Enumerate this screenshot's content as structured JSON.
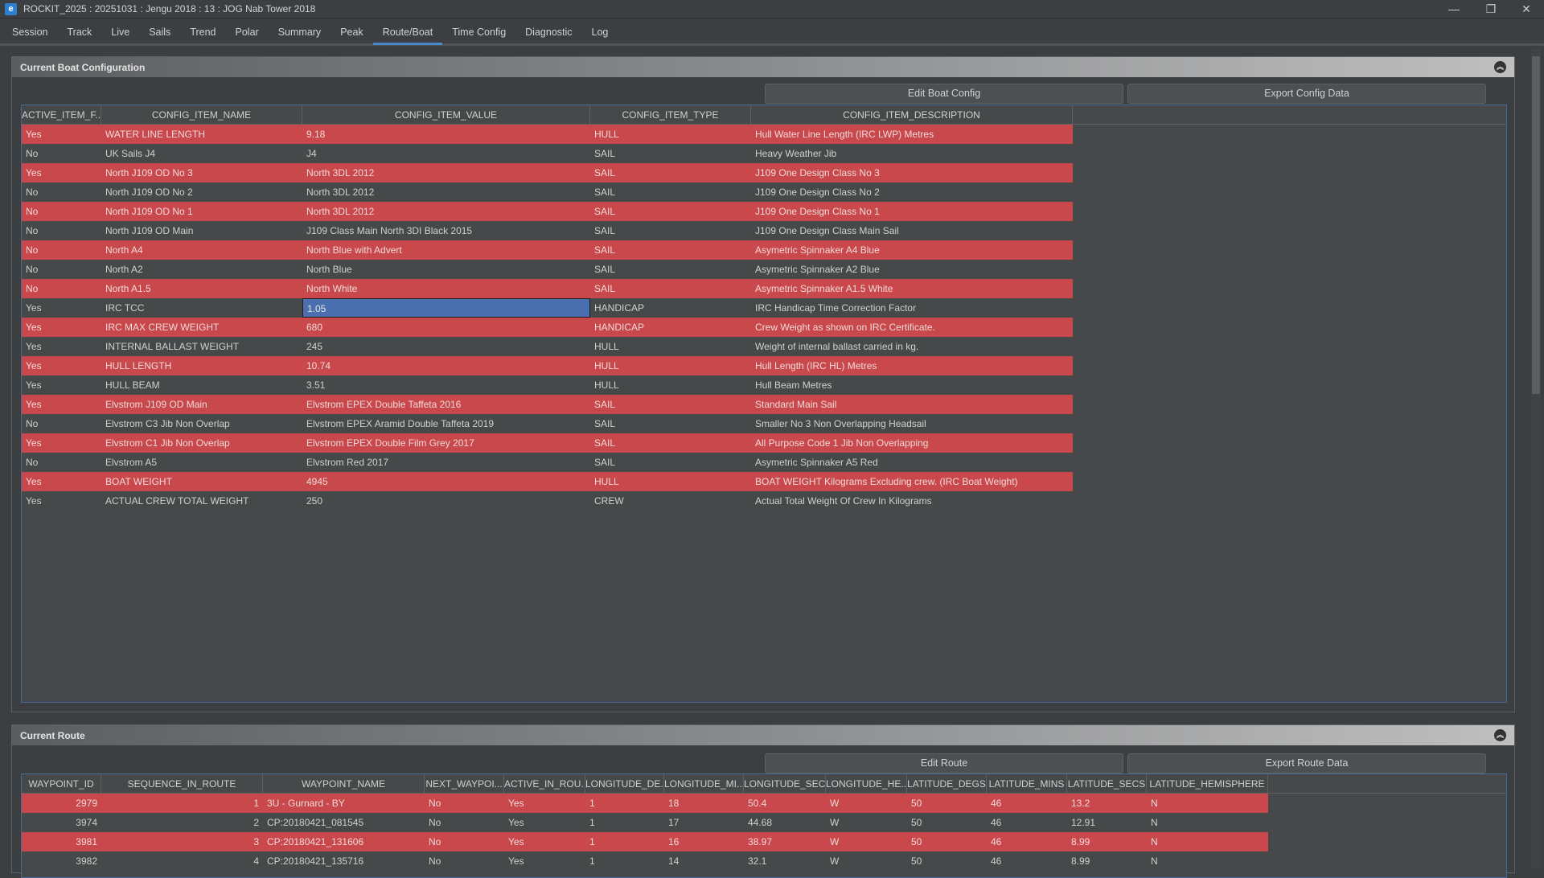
{
  "window": {
    "title": "ROCKIT_2025 : 20251031 : Jengu 2018 : 13 : JOG Nab Tower 2018",
    "minimize": "—",
    "restore": "❐",
    "close": "✕"
  },
  "menu": [
    "Session",
    "Track",
    "Live",
    "Sails",
    "Trend",
    "Polar",
    "Summary",
    "Peak",
    "Route/Boat",
    "Time Config",
    "Diagnostic",
    "Log"
  ],
  "active_tab": "Route/Boat",
  "boat": {
    "title": "Current Boat Configuration",
    "collapse": "︽",
    "edit_label": "Edit Boat Config",
    "export_label": "Export Config Data",
    "columns": [
      "ACTIVE_ITEM_F...",
      "CONFIG_ITEM_NAME",
      "CONFIG_ITEM_VALUE",
      "CONFIG_ITEM_TYPE",
      "CONFIG_ITEM_DESCRIPTION"
    ],
    "rows": [
      [
        "Yes",
        "WATER LINE LENGTH",
        "9.18",
        "HULL",
        "Hull Water Line Length (IRC LWP) Metres"
      ],
      [
        "No",
        "UK Sails J4",
        "J4",
        "SAIL",
        "Heavy Weather Jib"
      ],
      [
        "Yes",
        "North J109 OD No 3",
        "North 3DL 2012",
        "SAIL",
        "J109 One Design Class No 3"
      ],
      [
        "No",
        "North J109 OD No 2",
        "North 3DL 2012",
        "SAIL",
        "J109 One Design Class No 2"
      ],
      [
        "No",
        "North J109 OD No 1",
        "North 3DL 2012",
        "SAIL",
        "J109 One Design Class No 1"
      ],
      [
        "No",
        "North J109 OD Main",
        "J109 Class Main North 3DI Black 2015",
        "SAIL",
        "J109 One Design Class Main Sail"
      ],
      [
        "No",
        "North A4",
        "North Blue with Advert",
        "SAIL",
        "Asymetric Spinnaker A4 Blue"
      ],
      [
        "No",
        "North A2",
        "North Blue",
        "SAIL",
        "Asymetric Spinnaker A2 Blue"
      ],
      [
        "No",
        "North A1.5",
        "North White",
        "SAIL",
        "Asymetric Spinnaker A1.5 White"
      ],
      [
        "Yes",
        "IRC TCC",
        "1.05",
        "HANDICAP",
        "IRC Handicap Time Correction Factor"
      ],
      [
        "Yes",
        "IRC MAX CREW WEIGHT",
        "680",
        "HANDICAP",
        "Crew Weight as shown on IRC Certificate."
      ],
      [
        "Yes",
        "INTERNAL BALLAST WEIGHT",
        "245",
        "HULL",
        "Weight of internal ballast carried in kg."
      ],
      [
        "Yes",
        "HULL LENGTH",
        "10.74",
        "HULL",
        "Hull Length (IRC HL) Metres"
      ],
      [
        "Yes",
        "HULL BEAM",
        "3.51",
        "HULL",
        "Hull Beam Metres"
      ],
      [
        "Yes",
        "Elvstrom J109 OD Main",
        "Elvstrom EPEX Double Taffeta 2016",
        "SAIL",
        "Standard Main Sail"
      ],
      [
        "No",
        "Elvstrom C3 Jib Non Overlap",
        "Elvstrom EPEX Aramid Double  Taffeta 2019",
        "SAIL",
        "Smaller No 3 Non Overlapping Headsail"
      ],
      [
        "Yes",
        "Elvstrom C1 Jib Non Overlap",
        "Elvstrom EPEX Double Film Grey 2017",
        "SAIL",
        "All Purpose Code 1 Jib Non Overlapping"
      ],
      [
        "No",
        "Elvstrom A5",
        "Elvstrom Red 2017",
        "SAIL",
        "Asymetric Spinnaker A5 Red"
      ],
      [
        "Yes",
        "BOAT WEIGHT",
        "4945",
        "HULL",
        "BOAT WEIGHT Kilograms Excluding crew. (IRC Boat Weight)"
      ],
      [
        "Yes",
        "ACTUAL CREW TOTAL WEIGHT",
        "250",
        "CREW",
        "Actual Total Weight Of Crew In Kilograms"
      ]
    ]
  },
  "route": {
    "title": "Current Route",
    "collapse": "︽",
    "edit_label": "Edit Route",
    "export_label": "Export Route Data",
    "columns": [
      "WAYPOINT_ID",
      "SEQUENCE_IN_ROUTE",
      "WAYPOINT_NAME",
      "NEXT_WAYPOI...",
      "ACTIVE_IN_ROU...",
      "LONGITUDE_DE...",
      "LONGITUDE_MI...",
      "LONGITUDE_SECS",
      "LONGITUDE_HE...",
      "LATITUDE_DEGS",
      "LATITUDE_MINS",
      "LATITUDE_SECS",
      "LATITUDE_HEMISPHERE"
    ],
    "rows": [
      [
        "2979",
        "1",
        "3U - Gurnard - BY",
        "No",
        "Yes",
        "1",
        "18",
        "50.4",
        "W",
        "50",
        "46",
        "13.2",
        "N"
      ],
      [
        "3974",
        "2",
        "CP:20180421_081545",
        "No",
        "Yes",
        "1",
        "17",
        "44.68",
        "W",
        "50",
        "46",
        "12.91",
        "N"
      ],
      [
        "3981",
        "3",
        "CP:20180421_131606",
        "No",
        "Yes",
        "1",
        "16",
        "38.97",
        "W",
        "50",
        "46",
        "8.99",
        "N"
      ],
      [
        "3982",
        "4",
        "CP:20180421_135716",
        "No",
        "Yes",
        "1",
        "14",
        "32.1",
        "W",
        "50",
        "46",
        "8.99",
        "N"
      ]
    ]
  },
  "colors": {
    "red_row": "#c8484b",
    "selected": "#4b6eaf",
    "accent": "#4a88c7"
  }
}
